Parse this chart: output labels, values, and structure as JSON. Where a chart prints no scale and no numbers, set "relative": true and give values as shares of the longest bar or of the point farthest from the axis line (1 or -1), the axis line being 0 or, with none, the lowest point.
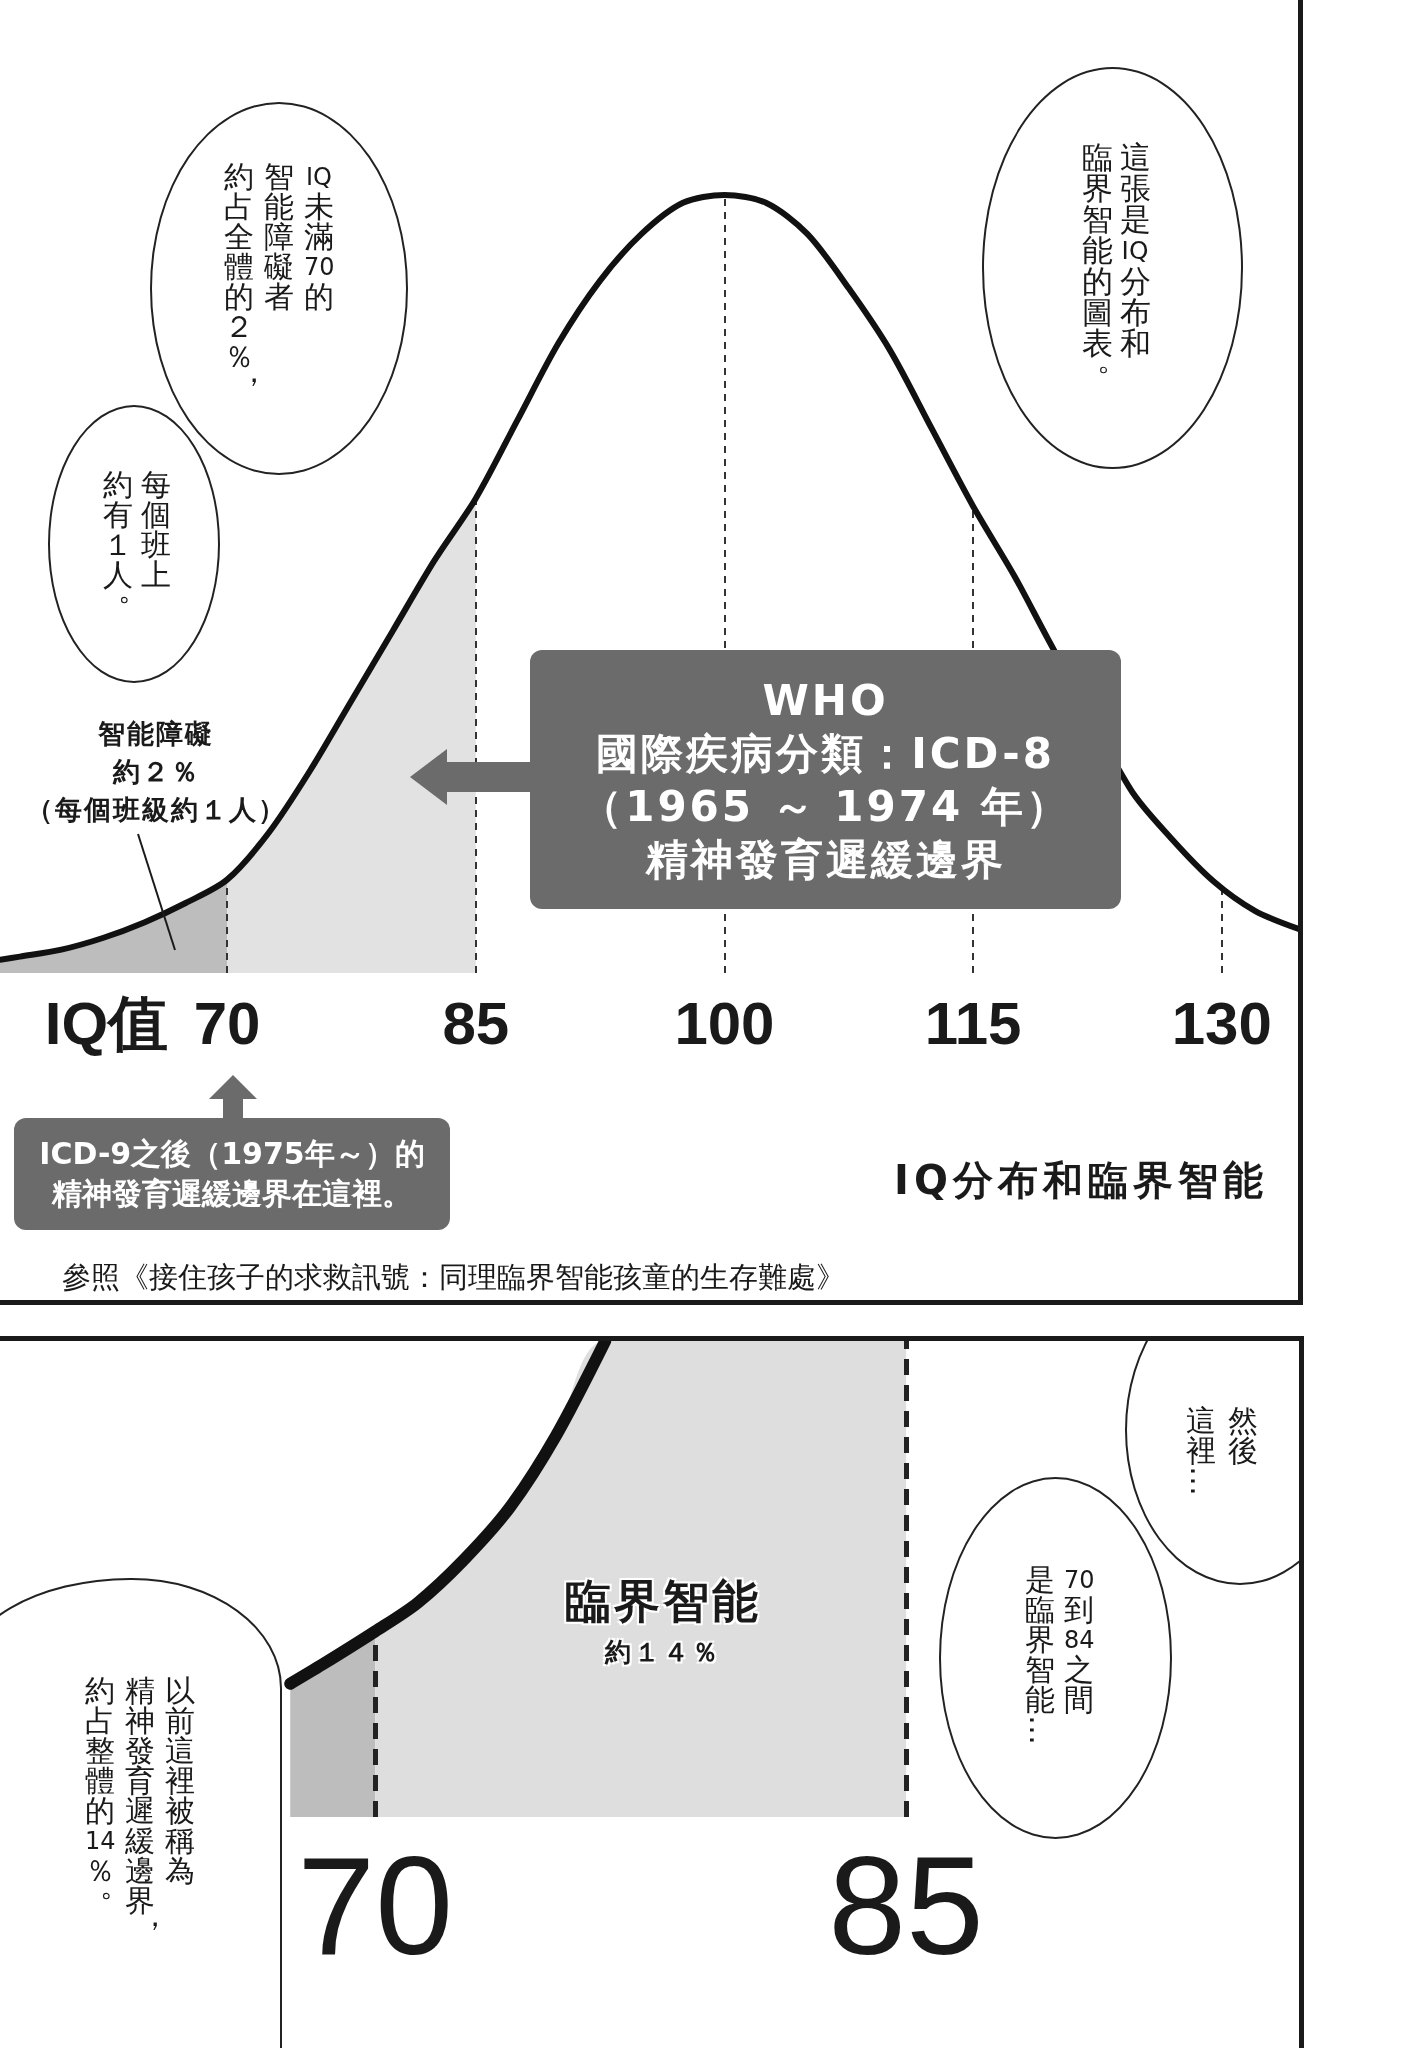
{
  "chart_data": [
    {
      "type": "line",
      "title": "IQ分布和臨界智能",
      "xlabel": "IQ值",
      "relative": true,
      "series": [
        {
          "type": "area",
          "color": "#bdbdbd",
          "x": [
            56.3,
            57.5,
            60,
            62.5,
            65,
            67.5,
            70
          ],
          "values": [
            0.017,
            0.021,
            0.03,
            0.045,
            0.065,
            0.09,
            0.12
          ]
        },
        {
          "type": "area",
          "color": "#e2e2e2",
          "x": [
            70,
            72.5,
            75,
            77.5,
            80,
            82.5,
            85
          ],
          "values": [
            0.12,
            0.18,
            0.26,
            0.35,
            0.44,
            0.53,
            0.61
          ]
        },
        {
          "type": "line",
          "color": "#111111",
          "x": [
            56.3,
            57.5,
            60,
            62.5,
            65,
            67.5,
            70,
            72.5,
            75,
            77.5,
            80,
            82.5,
            85,
            87.5,
            90,
            92.5,
            95,
            97.5,
            100,
            102.5,
            105,
            107.5,
            110,
            112.5,
            115,
            117.5,
            119.5,
            124.5,
            127,
            129.5,
            132,
            134.6
          ],
          "values": [
            0.017,
            0.021,
            0.03,
            0.045,
            0.065,
            0.09,
            0.12,
            0.18,
            0.26,
            0.35,
            0.44,
            0.53,
            0.61,
            0.71,
            0.81,
            0.89,
            0.95,
            0.99,
            1,
            0.99,
            0.95,
            0.88,
            0.8,
            0.7,
            0.6,
            0.51,
            0.43,
            0.236,
            0.172,
            0.118,
            0.08,
            0.057
          ]
        }
      ],
      "xlim": [
        56.3,
        134.6
      ],
      "xticks": [
        70,
        85,
        100,
        115,
        130
      ],
      "ref_lines": [
        {
          "axis": "x",
          "value": 70,
          "line_style": "dashed",
          "color": "#333333"
        },
        {
          "axis": "x",
          "value": 85,
          "line_style": "dashed",
          "color": "#333333"
        },
        {
          "axis": "x",
          "value": 100,
          "line_style": "dashed",
          "color": "#333333"
        },
        {
          "axis": "x",
          "value": 115,
          "line_style": "dashed",
          "color": "#333333"
        },
        {
          "axis": "x",
          "value": 130,
          "line_style": "dashed",
          "color": "#333333"
        }
      ],
      "annotations": [
        "IQ未滿70的智能障礙者約占全體的２％，",
        "每個班上約有１人。",
        "這張是IQ分布和臨界智能的圖表。",
        "智能障礙約２％（每個班級約１人）",
        "WHO國際疾病分類：ICD-8（1965 ～ 1974 年）精神發育遲緩邊界",
        "ICD-9之後（1975年～）的精神發育遲緩邊界在這裡。",
        "參照《接住孩子的求救訊號：同理臨界智能孩童的生存難處》"
      ]
    },
    {
      "type": "line",
      "relative": true,
      "series": [
        {
          "type": "area",
          "color": "#bdbdbd",
          "x": [
            67.6,
            68.5,
            70
          ],
          "values": [
            0.28,
            0.32,
            0.39
          ]
        },
        {
          "type": "area",
          "color": "#dedede",
          "x": [
            70,
            71.2,
            72.5,
            73.8,
            75.1,
            76.5,
            85
          ],
          "values": [
            0.39,
            0.45,
            0.54,
            0.65,
            0.8,
            1,
            1
          ]
        },
        {
          "type": "line",
          "color": "#111111",
          "x": [
            67.6,
            68.5,
            70,
            71.2,
            72.5,
            73.8,
            75.1,
            76.5
          ],
          "values": [
            0.28,
            0.32,
            0.39,
            0.45,
            0.54,
            0.65,
            0.8,
            1
          ]
        }
      ],
      "xlim": [
        59.4,
        96.1
      ],
      "xticks": [
        70,
        85
      ],
      "ref_lines": [
        {
          "axis": "x",
          "value": 70,
          "line_style": "dashed",
          "color": "#222222"
        },
        {
          "axis": "x",
          "value": 85,
          "line_style": "dashed",
          "color": "#222222"
        }
      ],
      "annotations": [
        "然後這裡…",
        "70到84之間是臨界智能…",
        "以前這裡被稱為精神發育遲緩邊界，約占整體的14％。",
        "臨界智能約１４％"
      ]
    }
  ]
}
